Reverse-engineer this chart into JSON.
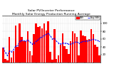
{
  "title": "Solar PV/Inverter Performance\nMonthly Solar Energy Production Running Average",
  "bar_color": "#ff0000",
  "line_color": "#0000ff",
  "bg_color": "#ffffff",
  "grid_color": "#aaaaaa",
  "bar_values": [
    38,
    10,
    5,
    65,
    12,
    30,
    95,
    40,
    100,
    65,
    55,
    55,
    80,
    30,
    18,
    72,
    100,
    90,
    92,
    88,
    100,
    82,
    105,
    28,
    8,
    85,
    10,
    18,
    45,
    75,
    42,
    35,
    22,
    55,
    80,
    75,
    65,
    18,
    82,
    70,
    68,
    58,
    60,
    85,
    72,
    45,
    40,
    18
  ],
  "avg_values": [
    38,
    25,
    18,
    30,
    28,
    33,
    42,
    44,
    55,
    57,
    56,
    55,
    58,
    52,
    48,
    50,
    55,
    58,
    63,
    66,
    70,
    72,
    75,
    68,
    60,
    62,
    55,
    50,
    48,
    50,
    50,
    49,
    47,
    47,
    50,
    52,
    53,
    50,
    52,
    54,
    55,
    55,
    56,
    58,
    60,
    58,
    57,
    54
  ],
  "ylim": [
    0,
    120
  ],
  "ytick_values": [
    20,
    40,
    60,
    80,
    100
  ],
  "title_fontsize": 3.2,
  "tick_fontsize": 2.8,
  "legend_labels": [
    "kWh",
    "Avg kWh"
  ],
  "n_bars": 48
}
